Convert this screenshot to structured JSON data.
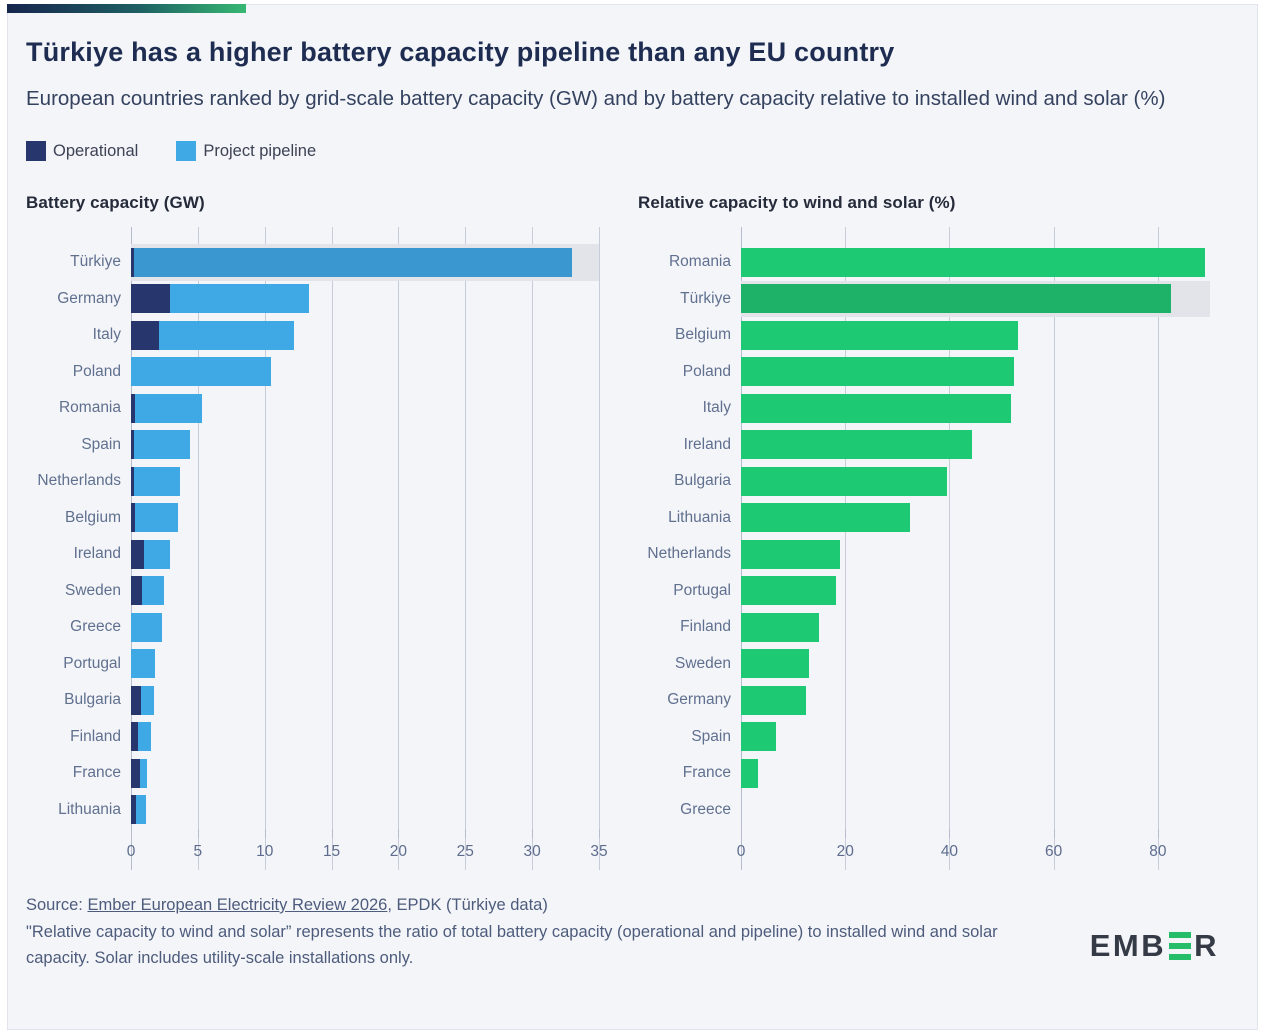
{
  "header": {
    "title": "Türkiye has a higher battery capacity pipeline than any EU country",
    "subtitle": "European countries ranked by grid-scale battery capacity (GW) and by battery capacity relative to installed wind and solar (%)"
  },
  "legend": {
    "operational": "Operational",
    "pipeline": "Project pipeline"
  },
  "colors": {
    "operational": "#27366d",
    "pipeline": "#3fa9e6",
    "pipeline_highlight": "#3a97d0",
    "relative": "#1dc973",
    "relative_highlight": "#1eb268",
    "highlight_band": "#e3e4e9",
    "logo_green": "#25bd68"
  },
  "chart_data": [
    {
      "type": "bar",
      "orientation": "horizontal",
      "title": "Battery capacity (GW)",
      "categories": [
        "Türkiye",
        "Germany",
        "Italy",
        "Poland",
        "Romania",
        "Spain",
        "Netherlands",
        "Belgium",
        "Ireland",
        "Sweden",
        "Greece",
        "Portugal",
        "Bulgaria",
        "Finland",
        "France",
        "Lithuania"
      ],
      "series": [
        {
          "name": "Operational",
          "values": [
            0.2,
            2.9,
            2.1,
            0,
            0.3,
            0.2,
            0.25,
            0.3,
            1.0,
            0.85,
            0,
            0,
            0.75,
            0.5,
            0.65,
            0.35
          ]
        },
        {
          "name": "Project pipeline",
          "values": [
            32.8,
            10.4,
            10.1,
            10.5,
            5.0,
            4.2,
            3.45,
            3.2,
            1.9,
            1.6,
            2.3,
            1.8,
            0.95,
            1.0,
            0.55,
            0.75
          ]
        }
      ],
      "xlim": [
        0,
        35
      ],
      "ticks": [
        0,
        5,
        10,
        15,
        20,
        25,
        30,
        35
      ],
      "highlight_category": "Türkiye",
      "grid": true,
      "legend_position": "top"
    },
    {
      "type": "bar",
      "orientation": "horizontal",
      "title": "Relative capacity to wind and solar (%)",
      "categories": [
        "Romania",
        "Türkiye",
        "Belgium",
        "Poland",
        "Italy",
        "Ireland",
        "Bulgaria",
        "Lithuania",
        "Netherlands",
        "Portugal",
        "Finland",
        "Sweden",
        "Germany",
        "Spain",
        "France",
        "Greece"
      ],
      "values": [
        89,
        82.5,
        53.2,
        52.3,
        51.8,
        44.3,
        39.5,
        32.5,
        19,
        18.2,
        15,
        13,
        12.5,
        6.7,
        3.2,
        0
      ],
      "xlim": [
        0,
        90
      ],
      "ticks": [
        0,
        20,
        40,
        60,
        80
      ],
      "highlight_category": "Türkiye",
      "grid": true
    }
  ],
  "footer": {
    "source_prefix": "Source: ",
    "source_link": "Ember European Electricity Review 2026",
    "source_suffix": ", EPDK (Türkiye data)",
    "note": "\"Relative capacity to wind and solar” represents the ratio of total battery capacity (operational and pipeline) to installed wind and solar capacity. Solar includes utility-scale installations only."
  },
  "logo": {
    "part1": "EMB",
    "part2": "R"
  }
}
